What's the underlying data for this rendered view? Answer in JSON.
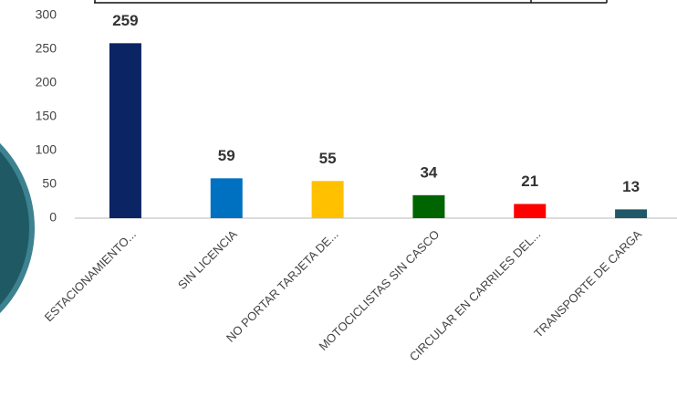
{
  "chart_data": {
    "type": "bar",
    "categories": [
      "ESTACIONAMIENTO...",
      "SIN LICENCIA",
      "NO PORTAR TARJETA DE...",
      "MOTOCICLISTAS SIN CASCO",
      "CIRCULAR EN CARRILES DEL...",
      "TRANSPORTE DE CARGA"
    ],
    "values": [
      259,
      59,
      55,
      34,
      21,
      13
    ],
    "colors": [
      "#0b2463",
      "#0070c0",
      "#ffc000",
      "#006400",
      "#ff0000",
      "#215868"
    ],
    "ylim": [
      0,
      300
    ],
    "yticks": [
      0,
      50,
      100,
      150,
      200,
      250,
      300
    ],
    "grid": false
  }
}
